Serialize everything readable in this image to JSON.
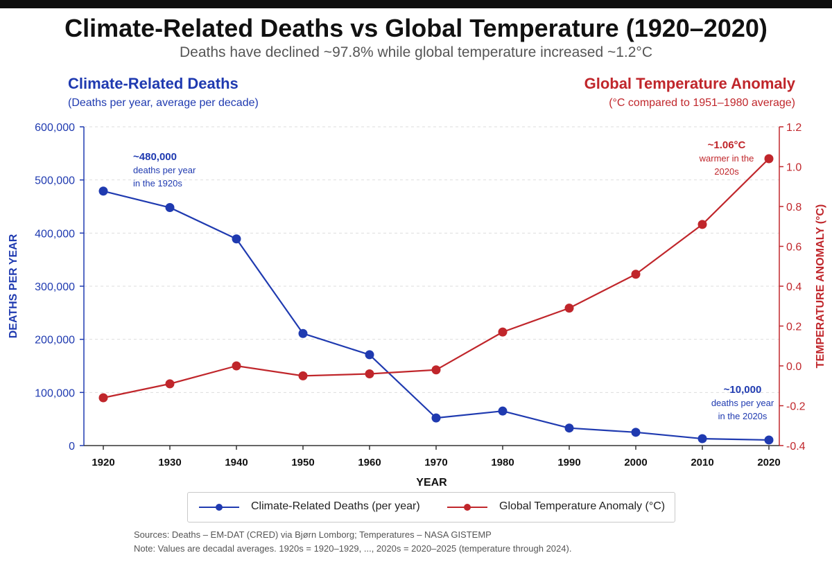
{
  "header": {
    "title": "Climate-Related Deaths vs Global Temperature (1920–2020)",
    "subtitle": "Deaths have declined ~97.8% while global temperature increased ~1.2°C"
  },
  "left_panel": {
    "heading": "Climate-Related Deaths",
    "subheading": "(Deaths per year, average per decade)"
  },
  "right_panel": {
    "heading": "Global Temperature Anomaly",
    "subheading": "(°C compared to 1951–1980 average)"
  },
  "legend": {
    "deaths_label": "Climate-Related Deaths (per year)",
    "temp_label": "Global Temperature Anomaly (°C)"
  },
  "footer": {
    "sources": "Sources: Deaths – EM-DAT (CRED) via Bjørn Lomborg; Temperatures – NASA GISTEMP",
    "note": "Note: Values are decadal averages. 1920s = 1920–1929, ..., 2020s = 2020–2025 (temperature through 2024)."
  },
  "colors": {
    "deaths": "#1f3ab0",
    "temperature": "#c0262b",
    "grid": "#dddddd",
    "axis": "#333333"
  },
  "chart_data": {
    "type": "line",
    "x": [
      1920,
      1930,
      1940,
      1950,
      1960,
      1970,
      1980,
      1990,
      2000,
      2010,
      2020
    ],
    "xlabel": "YEAR",
    "xticks": [
      "1920",
      "1930",
      "1940",
      "1950",
      "1960",
      "1970",
      "1980",
      "1990",
      "2000",
      "2010",
      "2020"
    ],
    "y_left": {
      "label": "DEATHS PER YEAR",
      "range": [
        0,
        600000
      ],
      "ticks": [
        "0",
        "100,000",
        "200,000",
        "300,000",
        "400,000",
        "500,000",
        "600,000"
      ],
      "tick_values": [
        0,
        100000,
        200000,
        300000,
        400000,
        500000,
        600000
      ]
    },
    "y_right": {
      "label": "TEMPERATURE ANOMALY (°C)",
      "range": [
        -0.4,
        1.2
      ],
      "ticks": [
        "-0.4",
        "-0.2",
        "0.0",
        "0.2",
        "0.4",
        "0.6",
        "0.8",
        "1.0",
        "1.2"
      ],
      "tick_values": [
        -0.4,
        -0.2,
        0.0,
        0.2,
        0.4,
        0.6,
        0.8,
        1.0,
        1.2
      ]
    },
    "grid": "horizontal dashed",
    "legend_position": "bottom",
    "series": [
      {
        "name": "Climate-Related Deaths (per year)",
        "axis": "left",
        "values": [
          479000,
          448000,
          389000,
          211000,
          171000,
          52000,
          65000,
          33000,
          25000,
          13000,
          10500
        ]
      },
      {
        "name": "Global Temperature Anomaly (°C)",
        "axis": "right",
        "values": [
          -0.16,
          -0.09,
          0.0,
          -0.05,
          -0.04,
          -0.02,
          0.17,
          0.29,
          0.46,
          0.71,
          1.04
        ]
      }
    ],
    "annotations": {
      "deaths_1920s": [
        "~480,000",
        "deaths per year",
        "in the 1920s"
      ],
      "temp_2020s": [
        "~1.06°C",
        "warmer in the",
        "2020s"
      ],
      "deaths_2020s": [
        "~10,000",
        "deaths per year",
        "in the 2020s"
      ]
    }
  }
}
